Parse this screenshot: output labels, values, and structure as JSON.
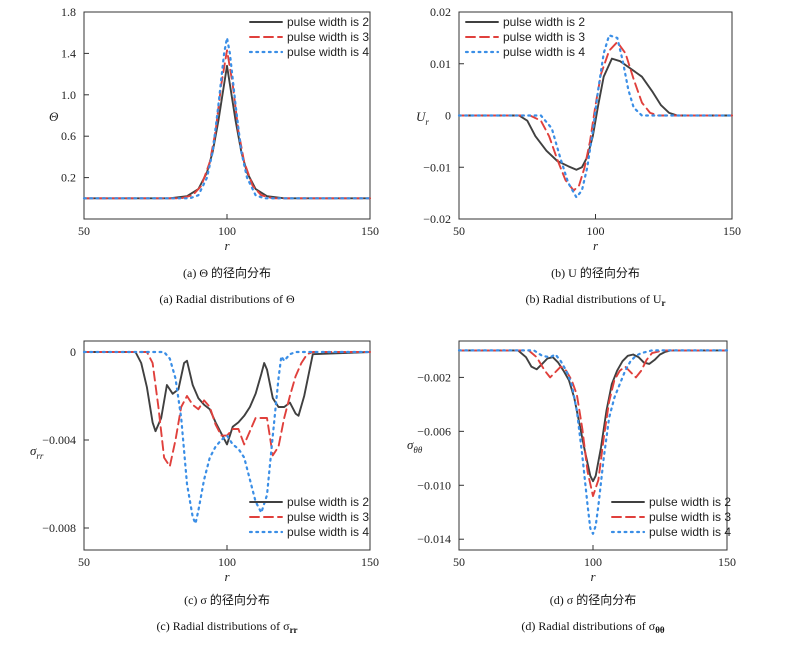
{
  "chart_data": [
    {
      "type": "line",
      "ylabel": "Θ",
      "xlabel": "r",
      "xlim": [
        50,
        150
      ],
      "ylim": [
        -0.2,
        1.8
      ],
      "xticks": [
        "50",
        "100",
        "150"
      ],
      "yticks": [
        "0.2",
        "0.6",
        "1.0",
        "1.4",
        "1.8"
      ],
      "caption_cn": "(a) Θ 的径向分布",
      "caption_en": "(a) Radial distributions of Θ",
      "legend_position": "top-right",
      "series": [
        {
          "name": "pulse width is 2",
          "color": "#404040",
          "dash": "solid",
          "x": [
            50,
            80,
            86,
            90,
            93,
            95,
            97,
            99,
            100,
            101,
            103,
            105,
            107,
            110,
            114,
            120,
            150
          ],
          "y": [
            0,
            0,
            0.02,
            0.09,
            0.25,
            0.45,
            0.75,
            1.1,
            1.28,
            1.1,
            0.75,
            0.45,
            0.25,
            0.09,
            0.02,
            0,
            0
          ]
        },
        {
          "name": "pulse width is 3",
          "color": "#e0403c",
          "dash": "dash",
          "x": [
            50,
            84,
            88,
            91,
            94,
            96,
            98,
            100,
            102,
            104,
            106,
            109,
            112,
            116,
            150
          ],
          "y": [
            0,
            0,
            0.03,
            0.12,
            0.35,
            0.65,
            1.1,
            1.43,
            1.1,
            0.65,
            0.35,
            0.12,
            0.03,
            0,
            0
          ]
        },
        {
          "name": "pulse width is 4",
          "color": "#3a8ee6",
          "dash": "dot",
          "x": [
            50,
            87,
            90,
            93,
            95,
            97,
            99,
            100,
            101,
            103,
            105,
            107,
            110,
            113,
            150
          ],
          "y": [
            0,
            0,
            0.03,
            0.2,
            0.45,
            0.9,
            1.4,
            1.55,
            1.4,
            0.9,
            0.45,
            0.2,
            0.03,
            0,
            0
          ]
        }
      ]
    },
    {
      "type": "line",
      "ylabel": "U",
      "ylabel_sub": "r",
      "xlabel": "r",
      "xlim": [
        50,
        150
      ],
      "ylim": [
        -0.02,
        0.02
      ],
      "xticks": [
        "50",
        "100",
        "150"
      ],
      "yticks": [
        "−0.02",
        "−0.01",
        "0",
        "0.01",
        "0.02"
      ],
      "caption_cn": "(b) U 的径向分布",
      "caption_en": "(b) Radial distributions of U",
      "caption_sub": "r",
      "legend_position": "top-right",
      "series": [
        {
          "name": "pulse width is 2",
          "color": "#404040",
          "dash": "solid",
          "x": [
            50,
            72,
            75,
            78,
            82,
            86,
            90,
            93,
            95,
            97,
            99,
            101,
            103,
            106,
            109,
            113,
            117,
            121,
            124,
            127,
            130,
            150
          ],
          "y": [
            0,
            0,
            -0.001,
            -0.004,
            -0.0068,
            -0.0088,
            -0.0098,
            -0.0105,
            -0.01,
            -0.008,
            -0.004,
            0.002,
            0.0075,
            0.011,
            0.0105,
            0.009,
            0.0075,
            0.0045,
            0.002,
            0.0005,
            0,
            0
          ]
        },
        {
          "name": "pulse width is 3",
          "color": "#e0403c",
          "dash": "dash",
          "x": [
            50,
            76,
            80,
            83,
            86,
            89,
            92,
            94,
            96,
            98,
            100,
            102,
            105,
            108,
            111,
            114,
            117,
            120,
            123,
            150
          ],
          "y": [
            0,
            0,
            -0.001,
            -0.004,
            -0.0085,
            -0.0125,
            -0.0145,
            -0.0135,
            -0.01,
            -0.005,
            0.002,
            0.008,
            0.0125,
            0.0142,
            0.012,
            0.007,
            0.0025,
            0.0005,
            0,
            0
          ]
        },
        {
          "name": "pulse width is 4",
          "color": "#3a8ee6",
          "dash": "dot",
          "x": [
            50,
            80,
            84,
            87,
            90,
            93,
            95,
            97,
            99,
            101,
            103,
            105,
            108,
            110,
            112,
            114,
            117,
            150
          ],
          "y": [
            0,
            0,
            -0.0025,
            -0.008,
            -0.013,
            -0.0158,
            -0.0145,
            -0.01,
            -0.003,
            0.005,
            0.012,
            0.0155,
            0.015,
            0.0105,
            0.005,
            0.0015,
            0,
            0
          ]
        }
      ]
    },
    {
      "type": "line",
      "ylabel": "σ",
      "ylabel_sub": "rr",
      "xlabel": "r",
      "xlim": [
        50,
        150
      ],
      "ylim": [
        -0.009,
        0.0005
      ],
      "xticks": [
        "50",
        "100",
        "150"
      ],
      "yticks": [
        "−0.008",
        "−0.004",
        "0"
      ],
      "caption_cn": "(c) σ 的径向分布",
      "caption_en": "(c) Radial distributions of σ",
      "caption_sub": "rr",
      "legend_position": "bottom-right",
      "series": [
        {
          "name": "pulse width is 2",
          "color": "#404040",
          "dash": "solid",
          "x": [
            50,
            68,
            70,
            72,
            74,
            75,
            77,
            79,
            81,
            83,
            85,
            86,
            88,
            90,
            92,
            94,
            96,
            98,
            100,
            102,
            104,
            106,
            108,
            110,
            112,
            113,
            114,
            116,
            118,
            120,
            122,
            124,
            125,
            127,
            130,
            150
          ],
          "y": [
            0,
            0,
            -0.0005,
            -0.0016,
            -0.0032,
            -0.0036,
            -0.003,
            -0.0015,
            -0.0019,
            -0.0017,
            -0.0005,
            -0.0004,
            -0.0015,
            -0.0021,
            -0.0024,
            -0.0026,
            -0.0032,
            -0.0037,
            -0.0042,
            -0.0034,
            -0.0032,
            -0.0029,
            -0.0025,
            -0.0019,
            -0.001,
            -0.0005,
            -0.0008,
            -0.0021,
            -0.0025,
            -0.0025,
            -0.0023,
            -0.0028,
            -0.0029,
            -0.002,
            -0.0001,
            0
          ]
        },
        {
          "name": "pulse width is 3",
          "color": "#e0403c",
          "dash": "dash",
          "x": [
            50,
            72,
            74,
            76,
            78,
            80,
            82,
            84,
            86,
            88,
            90,
            92,
            94,
            96,
            98,
            100,
            102,
            104,
            106,
            108,
            110,
            112,
            114,
            116,
            118,
            120,
            122,
            124,
            126,
            128,
            130,
            150
          ],
          "y": [
            0,
            0,
            -0.0005,
            -0.0025,
            -0.0048,
            -0.0052,
            -0.004,
            -0.0025,
            -0.002,
            -0.0024,
            -0.0026,
            -0.0022,
            -0.0025,
            -0.0033,
            -0.0038,
            -0.0038,
            -0.0035,
            -0.0035,
            -0.0042,
            -0.0036,
            -0.003,
            -0.003,
            -0.003,
            -0.0047,
            -0.0043,
            -0.003,
            -0.002,
            -0.0011,
            -0.0005,
            -0.0001,
            0,
            0
          ]
        },
        {
          "name": "pulse width is 4",
          "color": "#3a8ee6",
          "dash": "dot",
          "x": [
            50,
            78,
            80,
            82,
            84,
            86,
            88,
            89,
            90,
            92,
            94,
            96,
            98,
            100,
            102,
            104,
            106,
            108,
            110,
            112,
            114,
            116,
            118,
            119,
            120,
            122,
            124,
            150
          ],
          "y": [
            0,
            0,
            -0.0003,
            -0.0012,
            -0.003,
            -0.006,
            -0.0075,
            -0.0078,
            -0.0072,
            -0.0058,
            -0.0048,
            -0.0043,
            -0.004,
            -0.0038,
            -0.0042,
            -0.0044,
            -0.0048,
            -0.0058,
            -0.0068,
            -0.0073,
            -0.0065,
            -0.0038,
            -0.0012,
            -0.0002,
            -0.0004,
            -0.0001,
            0,
            0
          ]
        }
      ]
    },
    {
      "type": "line",
      "ylabel": "σ",
      "ylabel_sub": "θθ",
      "xlabel": "r",
      "xlim": [
        50,
        150
      ],
      "ylim": [
        -0.0148,
        0.0007
      ],
      "xticks": [
        "50",
        "100",
        "150"
      ],
      "yticks": [
        "−0.002",
        "−0.006",
        "−0.010",
        "−0.014"
      ],
      "caption_cn": "(d) σ 的径向分布",
      "caption_en": "(d) Radial distributions of σ",
      "caption_sub": "θθ",
      "legend_position": "bottom-right",
      "series": [
        {
          "name": "pulse width is 2",
          "color": "#404040",
          "dash": "solid",
          "x": [
            50,
            72,
            75,
            77,
            79,
            81,
            83,
            85,
            87,
            89,
            91,
            93,
            95,
            97,
            99,
            100,
            101,
            103,
            105,
            107,
            109,
            111,
            113,
            115,
            117,
            119,
            121,
            123,
            125,
            127,
            129,
            150
          ],
          "y": [
            0,
            0,
            -0.0005,
            -0.0012,
            -0.0014,
            -0.001,
            -0.0006,
            -0.0005,
            -0.0009,
            -0.0015,
            -0.0022,
            -0.0035,
            -0.0055,
            -0.0075,
            -0.0093,
            -0.0097,
            -0.0093,
            -0.0072,
            -0.0045,
            -0.0025,
            -0.0015,
            -0.0008,
            -0.0004,
            -0.0003,
            -0.0005,
            -0.0009,
            -0.001,
            -0.0007,
            -0.0003,
            -0.0001,
            0,
            0
          ]
        },
        {
          "name": "pulse width is 3",
          "color": "#e0403c",
          "dash": "dash",
          "x": [
            50,
            76,
            79,
            82,
            84,
            86,
            88,
            90,
            92,
            94,
            96,
            98,
            100,
            102,
            104,
            106,
            108,
            110,
            112,
            114,
            116,
            118,
            120,
            122,
            124,
            126,
            150
          ],
          "y": [
            0,
            0,
            -0.0005,
            -0.0015,
            -0.002,
            -0.0016,
            -0.0012,
            -0.0015,
            -0.0022,
            -0.0033,
            -0.0058,
            -0.009,
            -0.0108,
            -0.0096,
            -0.0065,
            -0.0038,
            -0.0022,
            -0.0015,
            -0.0012,
            -0.0016,
            -0.002,
            -0.0015,
            -0.0007,
            -0.0002,
            -0.0001,
            0,
            0
          ]
        },
        {
          "name": "pulse width is 4",
          "color": "#3a8ee6",
          "dash": "dot",
          "x": [
            50,
            78,
            81,
            84,
            86,
            88,
            90,
            92,
            94,
            96,
            98,
            99,
            100,
            101,
            102,
            104,
            106,
            108,
            110,
            112,
            114,
            116,
            118,
            120,
            122,
            150
          ],
          "y": [
            0,
            0,
            -0.0004,
            -0.0005,
            -0.0003,
            -0.0008,
            -0.0015,
            -0.0025,
            -0.0045,
            -0.0078,
            -0.0115,
            -0.0132,
            -0.0136,
            -0.013,
            -0.0115,
            -0.008,
            -0.005,
            -0.0035,
            -0.0025,
            -0.0015,
            -0.0008,
            -0.0004,
            -0.0002,
            -0.0001,
            0,
            0
          ]
        }
      ]
    }
  ]
}
